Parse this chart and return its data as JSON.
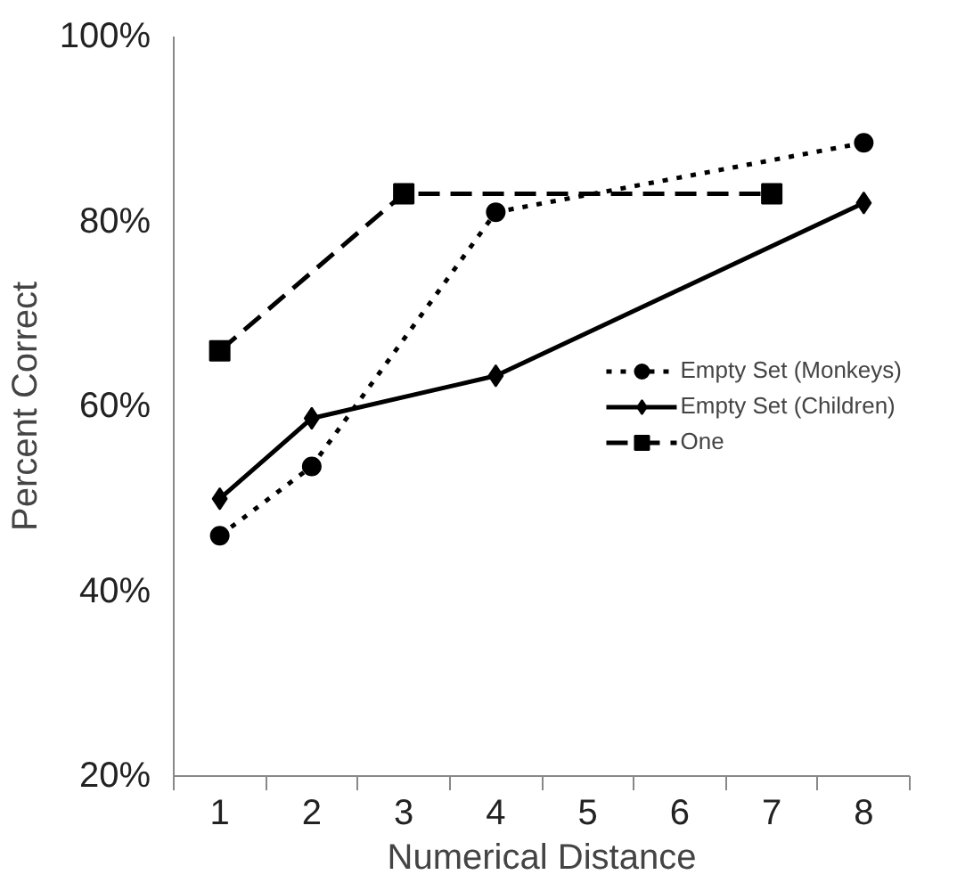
{
  "chart_data": {
    "type": "line",
    "xlabel": "Numerical Distance",
    "ylabel": "Percent Correct",
    "categories": [
      "1",
      "2",
      "3",
      "4",
      "5",
      "6",
      "7",
      "8"
    ],
    "ylim": [
      20,
      100
    ],
    "yticks": [
      {
        "value": 20,
        "label": "20%"
      },
      {
        "value": 40,
        "label": "40%"
      },
      {
        "value": 60,
        "label": "60%"
      },
      {
        "value": 80,
        "label": "80%"
      },
      {
        "value": 100,
        "label": "100%"
      }
    ],
    "grid": false,
    "legend": "right",
    "series": [
      {
        "name": "Empty Set (Monkeys)",
        "color": "#000000",
        "marker": "circle",
        "line_style": "dotted",
        "values": [
          46,
          53.5,
          null,
          81,
          null,
          null,
          null,
          88.5
        ]
      },
      {
        "name": "Empty Set (Children)",
        "color": "#000000",
        "marker": "diamond",
        "line_style": "solid",
        "values": [
          50,
          58.7,
          null,
          63.3,
          null,
          null,
          null,
          82
        ]
      },
      {
        "name": "One",
        "color": "#000000",
        "marker": "square",
        "line_style": "dashed",
        "values": [
          66,
          null,
          83,
          null,
          null,
          null,
          83,
          null
        ]
      }
    ]
  }
}
